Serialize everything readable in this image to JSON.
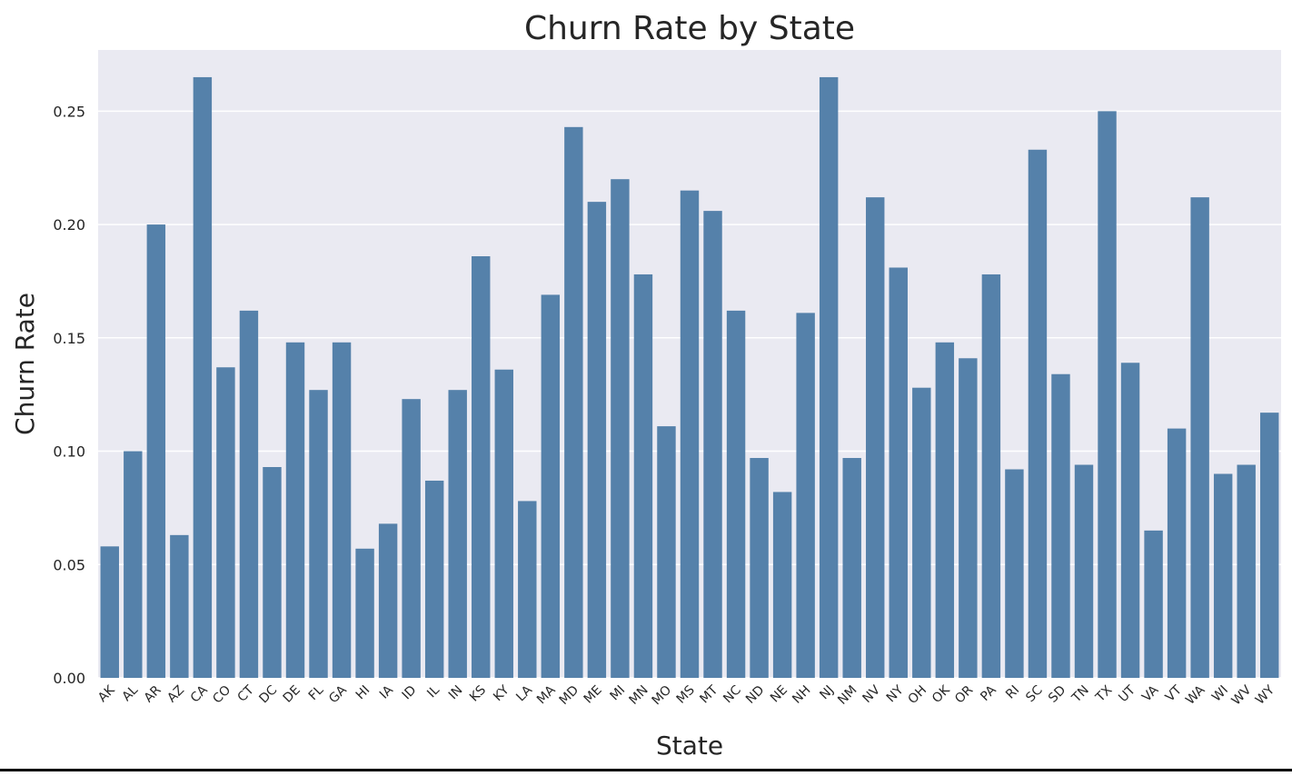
{
  "chart_data": {
    "type": "bar",
    "title": "Churn Rate by State",
    "xlabel": "State",
    "ylabel": "Churn Rate",
    "ylim": [
      0,
      0.277
    ],
    "yticks": [
      "0.00",
      "0.05",
      "0.10",
      "0.15",
      "0.20",
      "0.25"
    ],
    "grid": true,
    "bar_color": "#5581aa",
    "background_color": "#eaeaf2",
    "categories": [
      "AK",
      "AL",
      "AR",
      "AZ",
      "CA",
      "CO",
      "CT",
      "DC",
      "DE",
      "FL",
      "GA",
      "HI",
      "IA",
      "ID",
      "IL",
      "IN",
      "KS",
      "KY",
      "LA",
      "MA",
      "MD",
      "ME",
      "MI",
      "MN",
      "MO",
      "MS",
      "MT",
      "NC",
      "ND",
      "NE",
      "NH",
      "NJ",
      "NM",
      "NV",
      "NY",
      "OH",
      "OK",
      "OR",
      "PA",
      "RI",
      "SC",
      "SD",
      "TN",
      "TX",
      "UT",
      "VA",
      "VT",
      "WA",
      "WI",
      "WV",
      "WY"
    ],
    "values": [
      0.058,
      0.1,
      0.2,
      0.063,
      0.265,
      0.137,
      0.162,
      0.093,
      0.148,
      0.127,
      0.148,
      0.057,
      0.068,
      0.123,
      0.087,
      0.127,
      0.186,
      0.136,
      0.078,
      0.169,
      0.243,
      0.21,
      0.22,
      0.178,
      0.111,
      0.215,
      0.206,
      0.162,
      0.097,
      0.082,
      0.161,
      0.265,
      0.097,
      0.212,
      0.181,
      0.128,
      0.148,
      0.141,
      0.178,
      0.092,
      0.233,
      0.134,
      0.094,
      0.25,
      0.139,
      0.065,
      0.11,
      0.212,
      0.09,
      0.094,
      0.117
    ]
  }
}
